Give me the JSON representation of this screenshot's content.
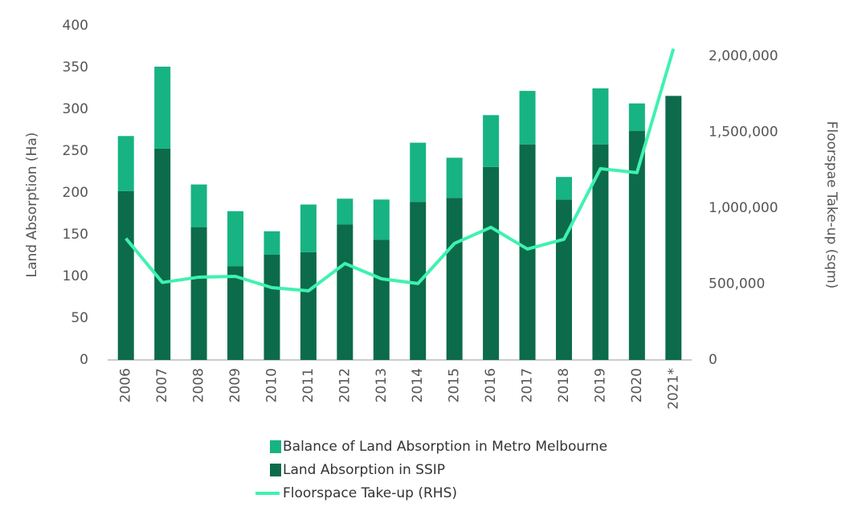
{
  "chart_data": {
    "type": "bar",
    "categories": [
      "2006",
      "2007",
      "2008",
      "2009",
      "2010",
      "2011",
      "2012",
      "2013",
      "2014",
      "2015",
      "2016",
      "2017",
      "2018",
      "2019",
      "2020",
      "2021*"
    ],
    "ylabel": "Land Absorption (Ha)",
    "y2label": "Floorspae Take-up (sqm)",
    "ylim": [
      0,
      400
    ],
    "yticks": [
      0,
      50,
      100,
      150,
      200,
      250,
      300,
      350,
      400
    ],
    "y2lim": [
      0,
      2200000
    ],
    "y2ticks": [
      0,
      {
        "value": 500000,
        "label": "500,000"
      },
      {
        "value": 1000000,
        "label": "1,000,000"
      },
      {
        "value": 1500000,
        "label": "1,500,000"
      },
      {
        "value": 2000000,
        "label": "2,000,000"
      }
    ],
    "series": [
      {
        "name": "Balance of Land Absorption in Metro Melbourne",
        "type": "bar",
        "color": "#17b383",
        "values": [
          66,
          98,
          51,
          66,
          28,
          57,
          31,
          48,
          71,
          48,
          62,
          64,
          27,
          67,
          33,
          0
        ]
      },
      {
        "name": "Land Absorption in SSIP",
        "type": "bar",
        "color": "#0c6b4b",
        "values": [
          202,
          253,
          159,
          112,
          126,
          129,
          162,
          144,
          189,
          194,
          231,
          258,
          192,
          258,
          274,
          316
        ]
      },
      {
        "name": "Floorspace Take-up (RHS)",
        "type": "line",
        "axis": "y2",
        "color": "#3ef2b0",
        "values": [
          800000,
          510000,
          545000,
          550000,
          476000,
          455000,
          635000,
          534000,
          503000,
          767000,
          873000,
          730000,
          794000,
          1259000,
          1233000,
          2048000
        ]
      }
    ]
  }
}
